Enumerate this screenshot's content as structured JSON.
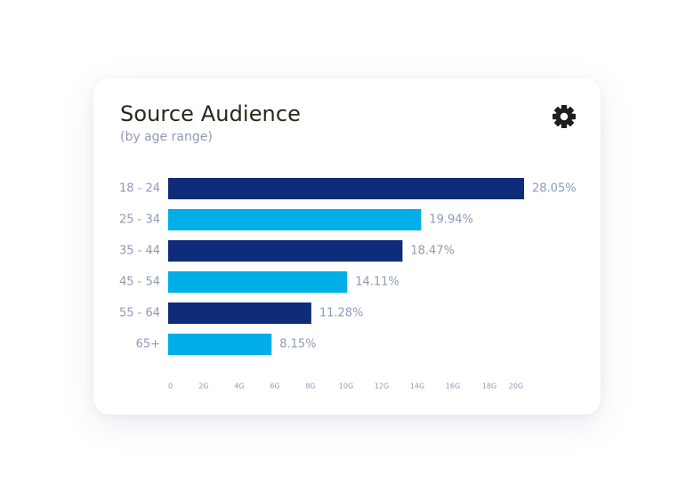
{
  "card": {
    "title": "Source Audience",
    "subtitle": "(by age range)",
    "settings_icon": "gear-icon"
  },
  "colors": {
    "dark": "#0f2c7a",
    "light": "#00aee8",
    "label": "#8f9bb3",
    "title": "#232a17"
  },
  "chart_data": {
    "type": "bar",
    "orientation": "horizontal",
    "categories": [
      "18 - 24",
      "25 - 34",
      "35 - 44",
      "45 - 54",
      "55 - 64",
      "65+"
    ],
    "values": [
      28.05,
      19.94,
      18.47,
      14.11,
      11.28,
      8.15
    ],
    "value_labels": [
      "28.05%",
      "19.94%",
      "18.47%",
      "14.11%",
      "11.28%",
      "8.15%"
    ],
    "bar_colors": [
      "#0f2c7a",
      "#00aee8",
      "#0f2c7a",
      "#00aee8",
      "#0f2c7a",
      "#00aee8"
    ],
    "x_ticks": [
      "0",
      "2G",
      "4G",
      "6G",
      "8G",
      "10G",
      "12G",
      "14G",
      "16G",
      "18G",
      "20G"
    ],
    "xlim": [
      0,
      28.05
    ],
    "title": "Source Audience",
    "subtitle": "(by age range)",
    "grid": false,
    "legend": "none"
  }
}
